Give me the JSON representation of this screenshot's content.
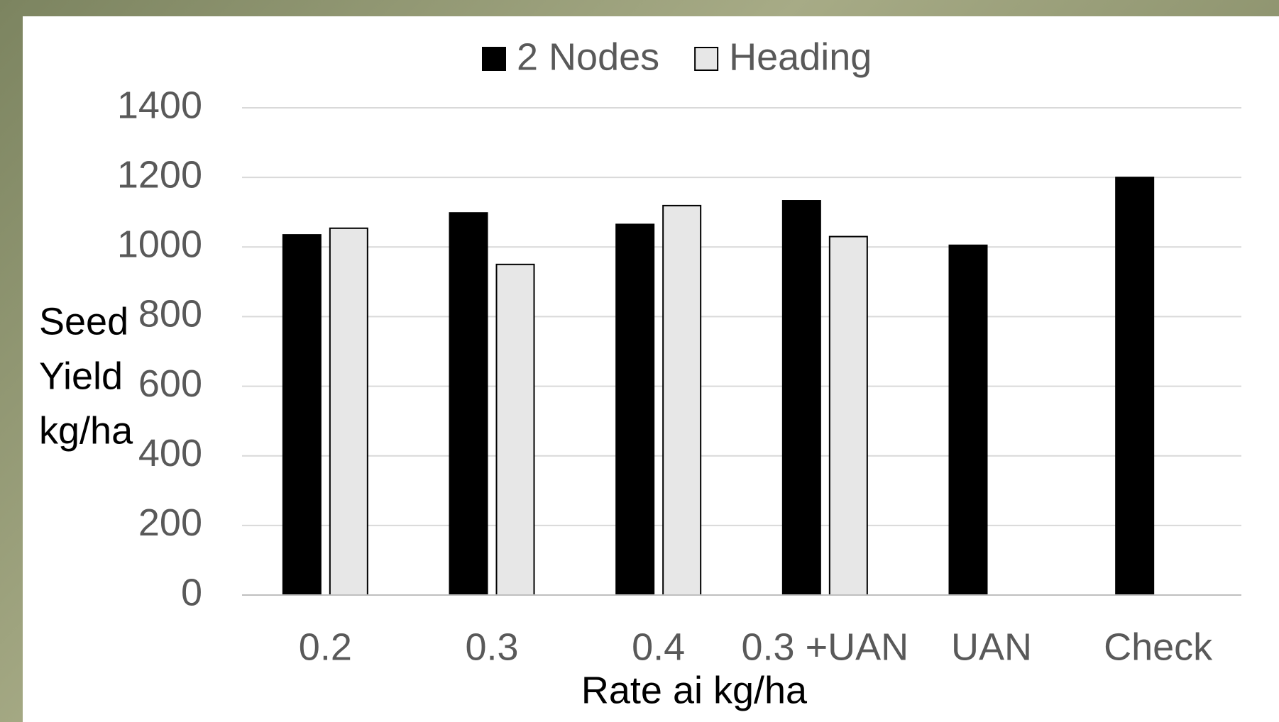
{
  "chart_data": {
    "type": "bar",
    "categories": [
      "0.2",
      "0.3",
      "0.4",
      "0.3 +UAN",
      "UAN",
      "Check"
    ],
    "series": [
      {
        "name": "2 Nodes",
        "color": "#000000",
        "values": [
          1035,
          1098,
          1065,
          1133,
          1005,
          1200
        ]
      },
      {
        "name": "Heading",
        "color": "#e7e7e7",
        "values": [
          1054,
          950,
          1119,
          1030,
          null,
          null
        ]
      }
    ],
    "y_label": [
      "Seed",
      "Yield",
      "kg/ha"
    ],
    "x_label": "Rate ai kg/ha",
    "ylim": [
      0,
      1400
    ],
    "yticks": [
      0,
      200,
      400,
      600,
      800,
      1000,
      1200,
      1400
    ],
    "grid": true,
    "legend": "top"
  }
}
